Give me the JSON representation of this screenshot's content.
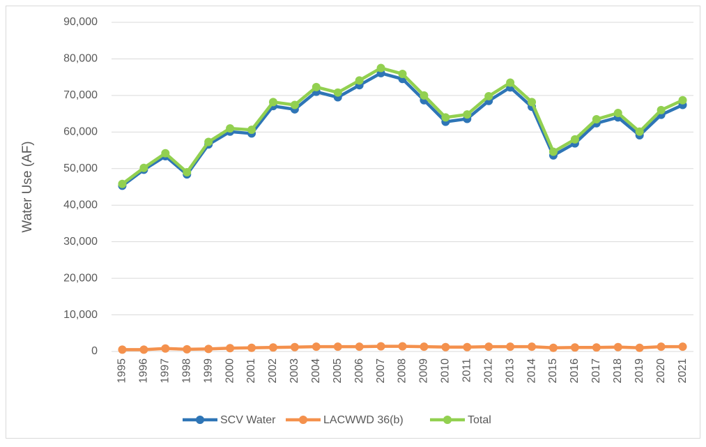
{
  "chart_data": {
    "type": "line",
    "y_label": "Water Use (AF)",
    "categories": [
      "1995",
      "1996",
      "1997",
      "1998",
      "1999",
      "2000",
      "2001",
      "2002",
      "2003",
      "2004",
      "2005",
      "2006",
      "2007",
      "2008",
      "2009",
      "2010",
      "2011",
      "2012",
      "2013",
      "2014",
      "2015",
      "2016",
      "2017",
      "2018",
      "2019",
      "2020",
      "2021"
    ],
    "series": [
      {
        "name": "SCV Water",
        "color": "#2e75b6",
        "values": [
          45300,
          49700,
          53400,
          48400,
          56600,
          60100,
          59600,
          67100,
          66200,
          71000,
          69500,
          72800,
          76100,
          74500,
          68700,
          62800,
          63600,
          68500,
          72200,
          66900,
          53600,
          56900,
          62400,
          64000,
          59100,
          64700,
          67400
        ]
      },
      {
        "name": "LACWWD 36(b)",
        "color": "#f4914d",
        "values": [
          500,
          500,
          800,
          600,
          700,
          900,
          1000,
          1100,
          1200,
          1300,
          1300,
          1300,
          1400,
          1400,
          1300,
          1200,
          1200,
          1300,
          1300,
          1300,
          1000,
          1100,
          1100,
          1200,
          1000,
          1300,
          1300
        ]
      },
      {
        "name": "Total",
        "color": "#92d050",
        "values": [
          45800,
          50200,
          54200,
          49000,
          57300,
          61000,
          60600,
          68200,
          67400,
          72300,
          70800,
          74100,
          77500,
          75900,
          70000,
          64000,
          64800,
          69800,
          73500,
          68200,
          54600,
          58000,
          63500,
          65200,
          60100,
          66000,
          68700
        ]
      }
    ],
    "ylim": [
      0,
      90000
    ],
    "yticks": [
      0,
      {
        "value": 10000,
        "label": "10,000"
      },
      {
        "value": 20000,
        "label": "20,000"
      },
      {
        "value": 30000,
        "label": "30,000"
      },
      {
        "value": 40000,
        "label": "40,000"
      },
      {
        "value": 50000,
        "label": "50,000"
      },
      {
        "value": 60000,
        "label": "60,000"
      },
      {
        "value": 70000,
        "label": "70,000"
      },
      {
        "value": 80000,
        "label": "80,000"
      },
      {
        "value": 90000,
        "label": "90,000"
      }
    ],
    "grid": true,
    "legend": "bottom"
  }
}
